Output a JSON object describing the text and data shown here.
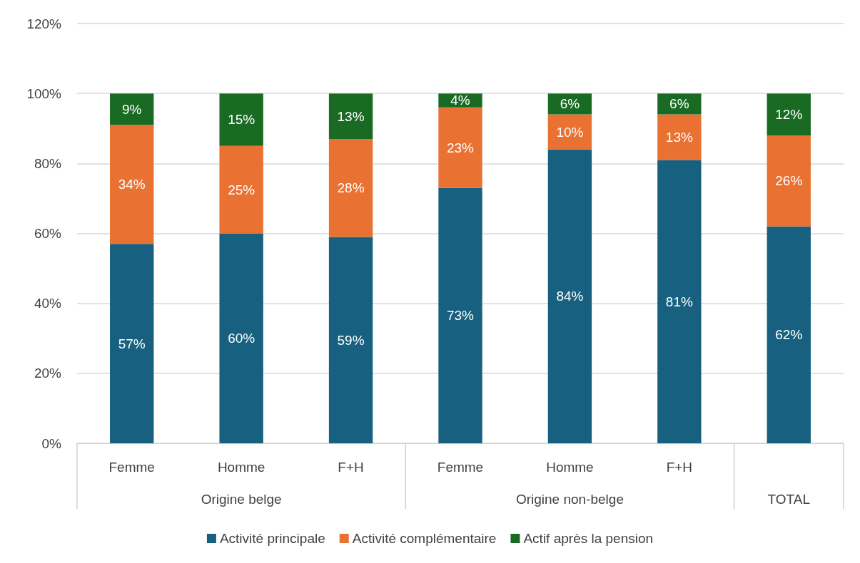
{
  "chart_data": {
    "type": "bar",
    "stacked": true,
    "categories": [
      "Femme",
      "Homme",
      "F+H",
      "Femme",
      "Homme",
      "F+H",
      null
    ],
    "annotations": [
      "Origine belge",
      "Origine non-belge",
      "TOTAL"
    ],
    "series": [
      {
        "name": "Activité principale",
        "color": "#17607f",
        "values": [
          57,
          60,
          59,
          73,
          84,
          81,
          62
        ],
        "value_labels": [
          "57%",
          "60%",
          "59%",
          "73%",
          "84%",
          "81%",
          "62%"
        ]
      },
      {
        "name": "Activité complémentaire",
        "color": "#e97132",
        "values": [
          34,
          25,
          28,
          23,
          10,
          13,
          26
        ],
        "value_labels": [
          "34%",
          "25%",
          "28%",
          "23%",
          "10%",
          "13%",
          "26%"
        ]
      },
      {
        "name": "Actif après la pension",
        "color": "#196b24",
        "values": [
          9,
          15,
          13,
          4,
          6,
          6,
          12
        ],
        "value_labels": [
          "9%",
          "15%",
          "13%",
          "4%",
          "6%",
          "6%",
          "12%"
        ]
      }
    ],
    "ylim": [
      0,
      120
    ],
    "yticks": [
      {
        "value": 0,
        "label": "0%"
      },
      {
        "value": 20,
        "label": "20%"
      },
      {
        "value": 40,
        "label": "40%"
      },
      {
        "value": 60,
        "label": "60%"
      },
      {
        "value": 80,
        "label": "80%"
      },
      {
        "value": 100,
        "label": "100%"
      },
      {
        "value": 120,
        "label": "120%"
      }
    ],
    "grid": "y",
    "legend": "bottom"
  }
}
